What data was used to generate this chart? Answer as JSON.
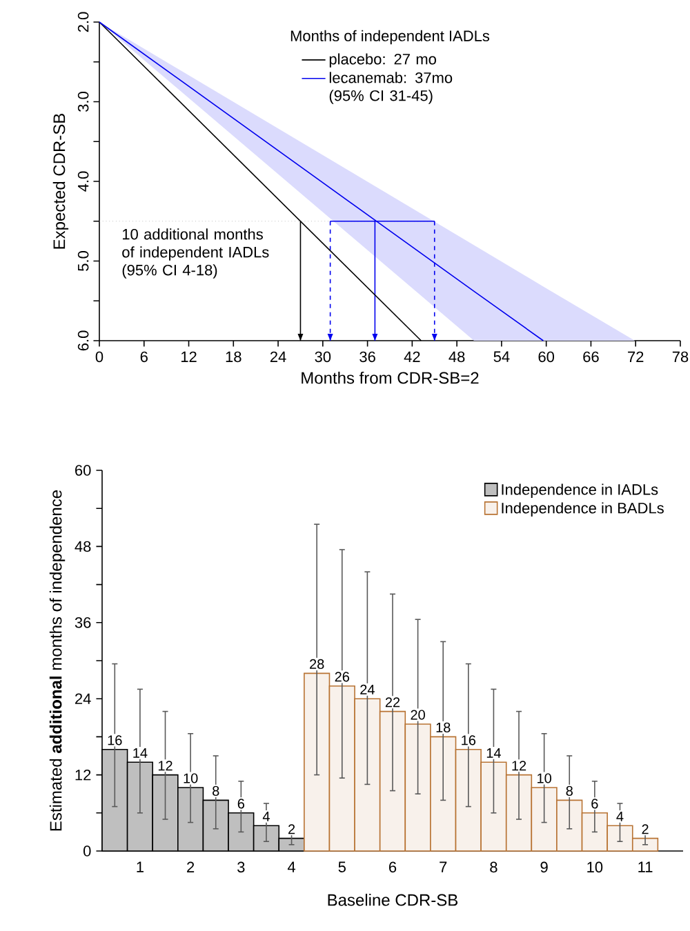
{
  "chart_data": [
    {
      "type": "line",
      "xlabel": "Months from CDR-SB=2",
      "ylabel": "Expected CDR-SB",
      "legend_title": "Months of independent IADLs",
      "legend": "top right",
      "xlim": [
        0,
        78
      ],
      "xticks": [
        0,
        6,
        12,
        18,
        24,
        30,
        36,
        42,
        48,
        54,
        60,
        66,
        72,
        78
      ],
      "ylim": [
        6,
        2
      ],
      "yticks": [
        {
          "value": 2,
          "label": "2.0"
        },
        {
          "value": 2.5,
          "label": null
        },
        {
          "value": 3,
          "label": "3.0"
        },
        {
          "value": 3.5,
          "label": null
        },
        {
          "value": 4,
          "label": "4.0"
        },
        {
          "value": 4.5,
          "label": null
        },
        {
          "value": 5,
          "label": "5.0"
        },
        {
          "value": 5.5,
          "label": null
        },
        {
          "value": 6,
          "label": "6.0"
        }
      ],
      "series": [
        {
          "name": "placebo: 27 mo",
          "color": "#000000",
          "x": [
            0,
            43.2
          ],
          "values": [
            2,
            6
          ]
        },
        {
          "name": "lecanemab: 37mo (95% CI 31-45)",
          "color": "#0000ee",
          "x": [
            0,
            50.3,
            59.6,
            71.9
          ],
          "values": [
            2,
            5.38,
            6,
            null
          ],
          "lower": [
            2,
            4.8,
            5.32,
            6
          ],
          "upper": [
            2,
            6,
            6,
            6
          ]
        },
        {
          "color": "#0000ee",
          "x": [
            31,
            45
          ],
          "values": [
            4.5,
            4.5
          ]
        }
      ],
      "ref_lines": [
        {
          "axis": "y",
          "value": 4.5,
          "color": "#a0a0a0",
          "line_style": "dotted"
        },
        {
          "axis": "x",
          "value": 27,
          "color": "#000000"
        },
        {
          "axis": "x",
          "value": 31,
          "color": "#0000ee",
          "line_style": "dashed"
        },
        {
          "axis": "x",
          "value": 37,
          "color": "#0000ee"
        },
        {
          "axis": "x",
          "value": 45,
          "color": "#0000ee",
          "line_style": "dashed"
        }
      ],
      "annotations": [
        "10 additional months of independent IADLs (95% CI 4-18)"
      ]
    },
    {
      "type": "bar",
      "xlabel": "Baseline CDR-SB",
      "ylabel": "Estimated **additional** months of independence",
      "legend": "top right",
      "data_labels": true,
      "categories": [
        null,
        "1",
        null,
        "2",
        null,
        "3",
        null,
        "4",
        null,
        "5",
        null,
        "6",
        null,
        "7",
        null,
        "8",
        null,
        "9",
        null,
        "10",
        null,
        "11"
      ],
      "ylim": [
        0,
        60
      ],
      "yticks": [
        0,
        {
          "value": 6,
          "label": null
        },
        12,
        {
          "value": 18,
          "label": null
        },
        24,
        {
          "value": 30,
          "label": null
        },
        36,
        {
          "value": 42,
          "label": null
        },
        48,
        {
          "value": 54,
          "label": null
        },
        60
      ],
      "series": [
        {
          "name": "Independence in IADLs",
          "color": "#bfbfbf",
          "values": [
            16,
            14,
            12,
            10,
            8,
            6,
            4,
            2,
            null,
            null,
            null,
            null,
            null,
            null,
            null,
            null,
            null,
            null,
            null,
            null,
            null,
            null
          ],
          "errors": [
            [
              7,
              29.5
            ],
            [
              6,
              25.5
            ],
            [
              5,
              22
            ],
            [
              4.5,
              18.5
            ],
            [
              3.5,
              15
            ],
            [
              3,
              11
            ],
            [
              1.5,
              7.5
            ],
            [
              1,
              3
            ],
            null,
            null,
            null,
            null,
            null,
            null,
            null,
            null,
            null,
            null,
            null,
            null,
            null,
            null
          ]
        },
        {
          "name": "Independence in BADLs",
          "color": "#b87333",
          "values": [
            null,
            null,
            null,
            null,
            null,
            null,
            null,
            null,
            28,
            26,
            24,
            22,
            20,
            18,
            16,
            14,
            12,
            10,
            8,
            6,
            4,
            2
          ],
          "errors": [
            null,
            null,
            null,
            null,
            null,
            null,
            null,
            null,
            [
              12,
              51.5
            ],
            [
              11.5,
              47.5
            ],
            [
              10.5,
              44
            ],
            [
              9.5,
              40.5
            ],
            [
              9,
              36.5
            ],
            [
              8,
              33
            ],
            [
              7,
              29.5
            ],
            [
              6,
              25.5
            ],
            [
              5,
              22
            ],
            [
              4.5,
              18.5
            ],
            [
              3.5,
              15
            ],
            [
              3,
              11
            ],
            [
              1.5,
              7.5
            ],
            [
              1,
              3
            ]
          ]
        }
      ]
    }
  ]
}
